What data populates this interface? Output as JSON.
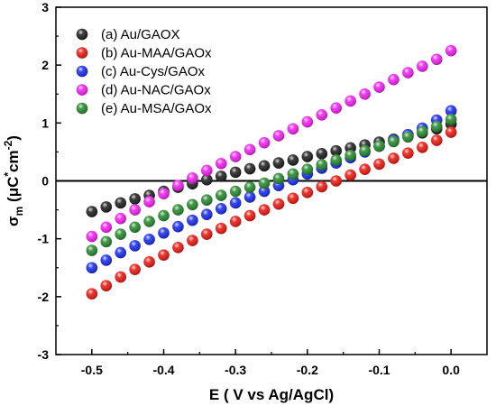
{
  "chart_data": {
    "type": "scatter",
    "xlabel": "E ( V vs Ag/AgCl)",
    "ylabel": {
      "symbol": "σ",
      "sub": "m",
      "open": " (μC",
      "sup": "*",
      "close": "cm",
      "sup2": "-2",
      "end": ")"
    },
    "xlim": [
      -0.55,
      0.05
    ],
    "ylim": [
      -3,
      3
    ],
    "xticks": [
      -0.5,
      -0.4,
      -0.3,
      -0.2,
      -0.1,
      0.0
    ],
    "xtick_labels": [
      "-0.5",
      "-0.4",
      "-0.3",
      "-0.2",
      "-0.1",
      "0.0"
    ],
    "yticks": [
      -3,
      -2,
      -1,
      0,
      1,
      2,
      3
    ],
    "ytick_labels": [
      "-3",
      "-2",
      "-1",
      "0",
      "1",
      "2",
      "3"
    ],
    "zero_line": true,
    "grid": false,
    "legend_position": "top-left",
    "x": [
      -0.5,
      -0.48,
      -0.46,
      -0.44,
      -0.42,
      -0.4,
      -0.38,
      -0.36,
      -0.34,
      -0.32,
      -0.3,
      -0.28,
      -0.26,
      -0.24,
      -0.22,
      -0.2,
      -0.18,
      -0.16,
      -0.14,
      -0.12,
      -0.1,
      -0.08,
      -0.06,
      -0.04,
      -0.02,
      0.0
    ],
    "series": [
      {
        "name": "(a) Au/GAOX",
        "color": "#1a1a1a",
        "values": [
          -0.53,
          -0.45,
          -0.38,
          -0.31,
          -0.25,
          -0.18,
          -0.11,
          -0.05,
          0.02,
          0.08,
          0.15,
          0.21,
          0.26,
          0.31,
          0.36,
          0.42,
          0.47,
          0.52,
          0.57,
          0.62,
          0.67,
          0.72,
          0.78,
          0.83,
          0.9,
          0.98
        ]
      },
      {
        "name": "(b) Au-MAA/GAOx",
        "color": "#e8140c",
        "values": [
          -1.95,
          -1.81,
          -1.66,
          -1.53,
          -1.4,
          -1.28,
          -1.15,
          -1.03,
          -0.92,
          -0.82,
          -0.7,
          -0.6,
          -0.5,
          -0.4,
          -0.3,
          -0.2,
          -0.1,
          0.0,
          0.1,
          0.2,
          0.29,
          0.39,
          0.48,
          0.58,
          0.7,
          0.84
        ]
      },
      {
        "name": "(c) Au-Cys/GAOx",
        "color": "#1428e8",
        "values": [
          -1.5,
          -1.37,
          -1.24,
          -1.12,
          -1.01,
          -0.9,
          -0.79,
          -0.68,
          -0.58,
          -0.48,
          -0.38,
          -0.28,
          -0.18,
          -0.08,
          0.02,
          0.12,
          0.22,
          0.31,
          0.4,
          0.5,
          0.6,
          0.7,
          0.8,
          0.91,
          1.05,
          1.21
        ]
      },
      {
        "name": "(d) Au-NAC/GAOx",
        "color": "#ee1cee",
        "values": [
          -0.96,
          -0.8,
          -0.65,
          -0.5,
          -0.36,
          -0.22,
          -0.08,
          0.05,
          0.18,
          0.3,
          0.42,
          0.54,
          0.66,
          0.78,
          0.9,
          1.02,
          1.14,
          1.26,
          1.38,
          1.5,
          1.62,
          1.75,
          1.87,
          1.98,
          2.1,
          2.25
        ]
      },
      {
        "name": "(e) Au-MSA/GAOx",
        "color": "#22862a",
        "values": [
          -1.2,
          -1.05,
          -0.92,
          -0.8,
          -0.7,
          -0.6,
          -0.5,
          -0.41,
          -0.33,
          -0.25,
          -0.18,
          -0.11,
          -0.04,
          0.04,
          0.12,
          0.2,
          0.28,
          0.36,
          0.44,
          0.52,
          0.6,
          0.68,
          0.76,
          0.85,
          0.94,
          1.06
        ]
      }
    ]
  }
}
